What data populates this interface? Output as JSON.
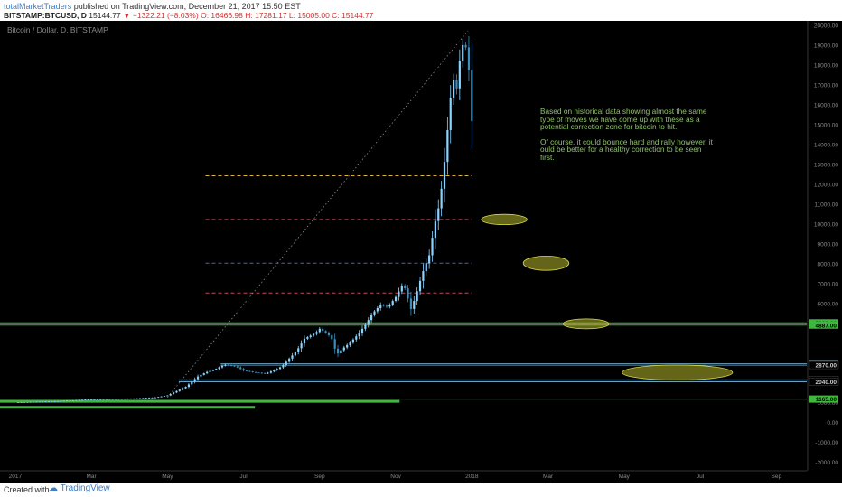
{
  "header": {
    "author": "totalMarketTraders",
    "published": " published on TradingView.com, December 21, 2017 15:50 EST",
    "symbol": "BITSTAMP:BTCUSD, D",
    "last": "15144.77",
    "change": "−1322.21 (−8.03%)",
    "ohlc": "O: 16466.98 H: 17281.17 L: 15005.00 C: 15144.77"
  },
  "footer": {
    "created": "Created with",
    "brand": "TradingView"
  },
  "annotation": {
    "p1": "Based on historical data showing almost the same type of moves we have come up with these as a potential correction zone for bitcoin to hit.",
    "p2": "Of course, it could bounce hard and rally however, it ould be better for a healthy correction to be seen first."
  },
  "chart_data": {
    "type": "candlestick",
    "title": "Bitcoin / Dollar, D, BITSTAMP",
    "x_tick_labels": [
      "2017",
      "Mar",
      "May",
      "Jul",
      "Sep",
      "Nov",
      "2018",
      "Mar",
      "May",
      "Jul",
      "Sep"
    ],
    "y_tick_labels": [
      "20000.00",
      "19000.00",
      "18000.00",
      "17000.00",
      "16000.00",
      "15000.00",
      "14000.00",
      "13000.00",
      "12000.00",
      "11000.00",
      "10000.00",
      "9000.00",
      "8000.00",
      "7000.00",
      "6000.00",
      "3000.00",
      "2000.00",
      "1000.00",
      "0.00",
      "-1000.00",
      "-2000.00"
    ],
    "ylim": [
      -2400,
      20200
    ],
    "xlim_months": [
      -0.4,
      20.8
    ],
    "price_path": [
      [
        0,
        1000
      ],
      [
        1,
        1050
      ],
      [
        2,
        1150
      ],
      [
        3,
        1180
      ],
      [
        3.7,
        1250
      ],
      [
        4,
        1350
      ],
      [
        4.5,
        1800
      ],
      [
        4.8,
        2300
      ],
      [
        5,
        2500
      ],
      [
        5.3,
        2700
      ],
      [
        5.5,
        2900
      ],
      [
        5.8,
        2800
      ],
      [
        6,
        2600
      ],
      [
        6.3,
        2500
      ],
      [
        6.6,
        2450
      ],
      [
        6.9,
        2700
      ],
      [
        7,
        2800
      ],
      [
        7.2,
        3200
      ],
      [
        7.4,
        3600
      ],
      [
        7.6,
        4200
      ],
      [
        7.9,
        4500
      ],
      [
        8,
        4700
      ],
      [
        8.3,
        4300
      ],
      [
        8.45,
        3400
      ],
      [
        8.6,
        3700
      ],
      [
        8.8,
        4000
      ],
      [
        9,
        4400
      ],
      [
        9.2,
        4900
      ],
      [
        9.4,
        5500
      ],
      [
        9.6,
        5900
      ],
      [
        9.8,
        5800
      ],
      [
        10,
        6300
      ],
      [
        10.2,
        7000
      ],
      [
        10.4,
        5700
      ],
      [
        10.5,
        6200
      ],
      [
        10.7,
        7500
      ],
      [
        10.9,
        8500
      ],
      [
        11,
        9800
      ],
      [
        11.15,
        11000
      ],
      [
        11.25,
        12500
      ],
      [
        11.35,
        14500
      ],
      [
        11.45,
        16500
      ],
      [
        11.55,
        17500
      ],
      [
        11.6,
        16800
      ],
      [
        11.7,
        18500
      ],
      [
        11.8,
        19300
      ],
      [
        11.9,
        18200
      ],
      [
        11.95,
        17000
      ],
      [
        12,
        15144.77
      ]
    ],
    "horizontal_lines": [
      {
        "price": 12400,
        "color": "#d9b43a",
        "style": "dashed",
        "from": 5.0,
        "to": 12.0
      },
      {
        "price": 10200,
        "color": "#c2475a",
        "style": "dashed",
        "from": 5.0,
        "to": 12.0
      },
      {
        "price": 8000,
        "color": "#4f5fb8",
        "style": "dashed",
        "from": 5.0,
        "to": 12.0
      },
      {
        "price": 6500,
        "color": "#c2475a",
        "style": "dashed",
        "from": 5.0,
        "to": 12.0
      },
      {
        "price": 5000,
        "color": "#3fb83f",
        "style": "solid",
        "from": -0.4,
        "to": 20.8
      },
      {
        "price": 4887,
        "color": "#3fb83f",
        "style": "solid",
        "from": -0.4,
        "to": 20.8
      },
      {
        "price": 2942,
        "color": "#5f8fa8",
        "style": "solid",
        "from": 5.4,
        "to": 20.8
      },
      {
        "price": 2870,
        "color": "#5f8fa8",
        "style": "solid",
        "from": 5.4,
        "to": 20.8
      },
      {
        "price": 2130,
        "color": "#7fb8d8",
        "style": "solid",
        "from": 4.3,
        "to": 20.8
      },
      {
        "price": 2040,
        "color": "#7fb8d8",
        "style": "solid",
        "from": 4.3,
        "to": 20.8
      },
      {
        "price": 1165,
        "color": "#3fb83f",
        "style": "solid",
        "from": -0.4,
        "to": 20.8
      },
      {
        "price": 1050,
        "color": "#3fb83f",
        "style": "thick",
        "from": -0.4,
        "to": 10.1
      },
      {
        "price": 750,
        "color": "#3fb83f",
        "style": "thick",
        "from": -0.4,
        "to": 6.3
      }
    ],
    "price_labels": [
      {
        "text": "5000.00",
        "price": 5000,
        "bg": "#3fb83f",
        "fg": "#000000"
      },
      {
        "text": "4887.00",
        "price": 4887,
        "bg": "#3fb83f",
        "fg": "#000000"
      },
      {
        "text": "2942.00",
        "price": 2942,
        "bg": "#9ab8c8",
        "fg": "#000000"
      },
      {
        "text": "2870.00",
        "price": 2870,
        "bg": "#000000",
        "fg": "#cccccc"
      },
      {
        "text": "2130.00",
        "price": 2130,
        "bg": "#000000",
        "fg": "#cccccc"
      },
      {
        "text": "2040.00",
        "price": 2040,
        "bg": "#000000",
        "fg": "#cccccc"
      },
      {
        "text": "1165.00",
        "price": 1165,
        "bg": "#3fb83f",
        "fg": "#000000"
      }
    ],
    "zones": [
      {
        "month": 12.85,
        "price": 10200,
        "rx_months": 0.6,
        "ry_price": 260
      },
      {
        "month": 13.95,
        "price": 8000,
        "rx_months": 0.6,
        "ry_price": 360
      },
      {
        "month": 15.0,
        "price": 4950,
        "rx_months": 0.6,
        "ry_price": 250
      },
      {
        "month": 17.4,
        "price": 2500,
        "rx_months": 1.45,
        "ry_price": 380
      }
    ],
    "trendline": {
      "from": [
        4.0,
        1250
      ],
      "to": [
        11.9,
        19700
      ],
      "color": "#888888",
      "style": "dotted"
    },
    "colors": {
      "background": "#000000",
      "up": "#8ad3ff",
      "down": "#3a8fc0",
      "zone": "#b8b82e"
    }
  }
}
